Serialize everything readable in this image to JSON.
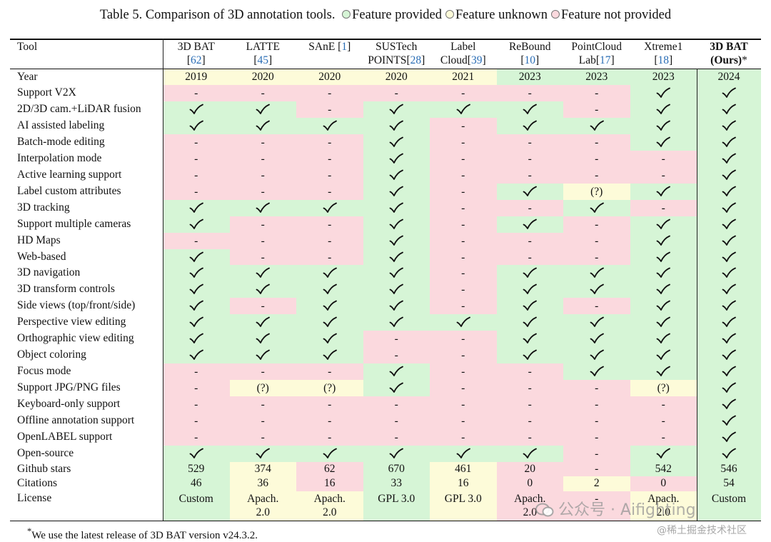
{
  "caption": {
    "prefix": "Table 5. Comparison of 3D annotation tools.",
    "legend": [
      {
        "label": "Feature provided",
        "color": "#d6f5d6"
      },
      {
        "label": "Feature unknown",
        "color": "#fdfbd9"
      },
      {
        "label": "Feature not provided",
        "color": "#fbd9de"
      }
    ]
  },
  "colors": {
    "G": "#d6f5d6",
    "U": "#fdfbd9",
    "R": "#fbd9de"
  },
  "table": {
    "tool_header": "Tool",
    "tools": [
      {
        "line1": "3D BAT",
        "l2a": "[",
        "l2ref": "62",
        "l2b": "]"
      },
      {
        "line1": "LATTE",
        "l2a": "[",
        "l2ref": "45",
        "l2b": "]"
      },
      {
        "line1": "SAnE [",
        "l2a": "",
        "l2ref": "",
        "l2b": "",
        "ref1": "1",
        "tail1": "]"
      },
      {
        "line1": "SUSTech",
        "l2a": "POINTS[",
        "l2ref": "28",
        "l2b": "]"
      },
      {
        "line1": "Label",
        "l2a": "Cloud[",
        "l2ref": "39",
        "l2b": "]"
      },
      {
        "line1": "ReBound",
        "l2a": "[",
        "l2ref": "10",
        "l2b": "]"
      },
      {
        "line1": "PointCloud",
        "l2a": "Lab[",
        "l2ref": "17",
        "l2b": "]"
      },
      {
        "line1": "Xtreme1",
        "l2a": "[",
        "l2ref": "18",
        "l2b": "]"
      },
      {
        "line1": "3D BAT",
        "l2a": "(Ours)",
        "l2ref": "",
        "l2b": "*",
        "bold": true
      }
    ],
    "year": {
      "label": "Year",
      "values": [
        "2019",
        "2020",
        "2020",
        "2020",
        "2021",
        "2023",
        "2023",
        "2023",
        "2024"
      ],
      "status": [
        "U",
        "U",
        "U",
        "U",
        "U",
        "G",
        "G",
        "G",
        "G"
      ]
    },
    "features": [
      {
        "label": "Support V2X",
        "status": [
          "R",
          "R",
          "R",
          "R",
          "R",
          "R",
          "R",
          "G",
          "G"
        ]
      },
      {
        "label": "2D/3D cam.+LiDAR fusion",
        "status": [
          "G",
          "G",
          "R",
          "G",
          "G",
          "G",
          "R",
          "G",
          "G"
        ]
      },
      {
        "label": "AI assisted labeling",
        "status": [
          "G",
          "G",
          "G",
          "G",
          "R",
          "G",
          "G",
          "G",
          "G"
        ]
      },
      {
        "label": "Batch-mode editing",
        "status": [
          "R",
          "R",
          "R",
          "G",
          "R",
          "R",
          "R",
          "G",
          "G"
        ]
      },
      {
        "label": "Interpolation mode",
        "status": [
          "R",
          "R",
          "R",
          "G",
          "R",
          "R",
          "R",
          "R",
          "G"
        ]
      },
      {
        "label": "Active learning support",
        "status": [
          "R",
          "R",
          "R",
          "G",
          "R",
          "R",
          "R",
          "R",
          "G"
        ]
      },
      {
        "label": "Label custom attributes",
        "status": [
          "R",
          "R",
          "R",
          "G",
          "R",
          "G",
          "U",
          "G",
          "G"
        ]
      },
      {
        "label": "3D tracking",
        "status": [
          "G",
          "G",
          "G",
          "G",
          "R",
          "R",
          "G",
          "R",
          "G"
        ]
      },
      {
        "label": "Support multiple cameras",
        "status": [
          "G",
          "R",
          "R",
          "G",
          "R",
          "G",
          "R",
          "G",
          "G"
        ]
      },
      {
        "label": "HD Maps",
        "status": [
          "R",
          "R",
          "R",
          "G",
          "R",
          "R",
          "R",
          "G",
          "G"
        ]
      },
      {
        "label": "Web-based",
        "status": [
          "G",
          "R",
          "R",
          "G",
          "R",
          "R",
          "R",
          "G",
          "G"
        ]
      },
      {
        "label": "3D navigation",
        "status": [
          "G",
          "G",
          "G",
          "G",
          "R",
          "G",
          "G",
          "G",
          "G"
        ]
      },
      {
        "label": "3D transform controls",
        "status": [
          "G",
          "G",
          "G",
          "G",
          "R",
          "G",
          "G",
          "G",
          "G"
        ]
      },
      {
        "label": "Side views (top/front/side)",
        "status": [
          "G",
          "R",
          "G",
          "G",
          "R",
          "G",
          "R",
          "G",
          "G"
        ]
      },
      {
        "label": "Perspective view editing",
        "status": [
          "G",
          "G",
          "G",
          "G",
          "G",
          "G",
          "G",
          "G",
          "G"
        ]
      },
      {
        "label": "Orthographic view editing",
        "status": [
          "G",
          "G",
          "G",
          "R",
          "R",
          "G",
          "G",
          "G",
          "G"
        ]
      },
      {
        "label": "Object coloring",
        "status": [
          "G",
          "G",
          "G",
          "R",
          "R",
          "G",
          "G",
          "G",
          "G"
        ]
      },
      {
        "label": "Focus mode",
        "status": [
          "R",
          "R",
          "R",
          "G",
          "R",
          "R",
          "G",
          "G",
          "G"
        ]
      },
      {
        "label": "Support JPG/PNG files",
        "status": [
          "R",
          "U",
          "U",
          "G",
          "R",
          "R",
          "R",
          "U",
          "G"
        ]
      },
      {
        "label": "Keyboard-only support",
        "status": [
          "R",
          "R",
          "R",
          "R",
          "R",
          "R",
          "R",
          "R",
          "G"
        ]
      },
      {
        "label": "Offline annotation support",
        "status": [
          "R",
          "R",
          "R",
          "R",
          "R",
          "R",
          "R",
          "R",
          "G"
        ]
      },
      {
        "label": "OpenLABEL support",
        "status": [
          "R",
          "R",
          "R",
          "R",
          "R",
          "R",
          "R",
          "R",
          "G"
        ]
      },
      {
        "label": "Open-source",
        "status": [
          "G",
          "G",
          "G",
          "G",
          "G",
          "G",
          "R",
          "G",
          "G"
        ]
      }
    ],
    "symbols": {
      "R": "-",
      "U": "(?)"
    },
    "stats": [
      {
        "label": "Github stars",
        "values": [
          "529",
          "374",
          "62",
          "670",
          "461",
          "20",
          "-",
          "542",
          "546"
        ],
        "status": [
          "G",
          "U",
          "R",
          "G",
          "U",
          "R",
          "R",
          "G",
          "G"
        ]
      },
      {
        "label": "Citations",
        "values": [
          "46",
          "36",
          "16",
          "33",
          "16",
          "0",
          "2",
          "0",
          "54"
        ],
        "status": [
          "G",
          "U",
          "R",
          "G",
          "U",
          "R",
          "U",
          "R",
          "G"
        ]
      }
    ],
    "license": {
      "label": "License",
      "values": [
        [
          "Custom",
          ""
        ],
        [
          "Apach.",
          "2.0"
        ],
        [
          "Apach.",
          "2.0"
        ],
        [
          "GPL 3.0",
          ""
        ],
        [
          "GPL 3.0",
          ""
        ],
        [
          "Apach.",
          "2.0"
        ],
        [
          "-",
          ""
        ],
        [
          "Apach.",
          "2.0"
        ],
        [
          "Custom",
          ""
        ]
      ],
      "status": [
        "G",
        "U",
        "U",
        "G",
        "U",
        "R",
        "R",
        "U",
        "G"
      ]
    }
  },
  "footnote": "We use the latest release of 3D BAT version v24.3.2.",
  "footnote_mark": "*",
  "watermark": {
    "main": "公众号 · Aifighting",
    "sub": "@稀土掘金技术社区"
  }
}
